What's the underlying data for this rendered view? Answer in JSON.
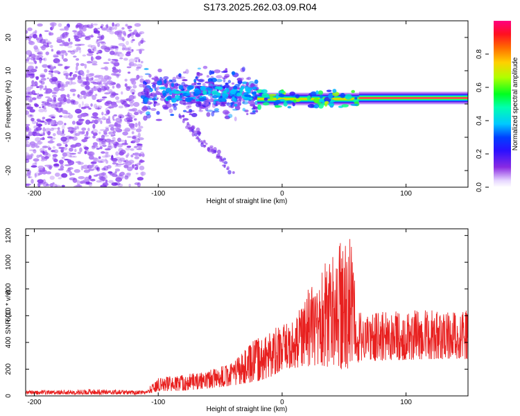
{
  "title": "S173.2025.262.03.09.R04",
  "colors": {
    "snr_line": "#e8201f",
    "spectrogram_base": "#7b2cf0",
    "axis": "#000000"
  },
  "chart_data": [
    {
      "type": "heatmap",
      "name": "spectrogram",
      "xlabel": "Height of straight line (km)",
      "ylabel": "Frequency (Hz)",
      "xlim": [
        -207,
        150
      ],
      "ylim": [
        -25,
        25
      ],
      "xticks": [
        -200,
        -100,
        0,
        100
      ],
      "yticks": [
        -20,
        -10,
        0,
        10,
        20
      ],
      "colorbar": {
        "label": "Normalized spectral amplitude",
        "range": [
          0,
          1
        ],
        "ticks": [
          0.0,
          0.2,
          0.4,
          0.6,
          0.8
        ],
        "tick_labels": [
          "0.0",
          "0.2",
          "0.4",
          "0.6",
          "0.8"
        ]
      },
      "features": [
        {
          "description_kind": "noise",
          "x_range": [
            -207,
            -112
          ],
          "freq_range": [
            -25,
            24
          ],
          "amplitude": 0.15
        },
        {
          "description_kind": "scattered",
          "x_range": [
            -112,
            -20
          ],
          "freq_center": 3,
          "freq_spread": 6,
          "amplitude": 0.3
        },
        {
          "description_kind": "descending_streak",
          "x_start": -82,
          "freq_start": -4,
          "x_end": -40,
          "freq_end": -20
        },
        {
          "description_kind": "tone",
          "x_range": [
            -20,
            62
          ],
          "freq": 1.5,
          "amplitude": 0.8
        },
        {
          "description_kind": "tone",
          "x_range": [
            62,
            150
          ],
          "freq": 1.8,
          "amplitude": 1.0
        }
      ]
    },
    {
      "type": "line",
      "name": "snr",
      "xlabel": "Height of straight line (km)",
      "ylabel": "SNR (10 * v/v)",
      "xlim": [
        -207,
        150
      ],
      "ylim": [
        0,
        1250
      ],
      "xticks": [
        -200,
        -100,
        0,
        100
      ],
      "yticks": [
        0,
        200,
        400,
        600,
        800,
        1000,
        1200
      ],
      "series": [
        {
          "name": "SNR",
          "envelope_x": [
            -207,
            -150,
            -110,
            -100,
            -80,
            -60,
            -40,
            -20,
            -10,
            0,
            10,
            20,
            30,
            40,
            50,
            55,
            60,
            65,
            80,
            100,
            120,
            150
          ],
          "envelope_base": [
            20,
            20,
            20,
            60,
            70,
            100,
            140,
            200,
            250,
            350,
            380,
            400,
            420,
            380,
            350,
            360,
            420,
            470,
            480,
            490,
            500,
            500
          ],
          "envelope_peak": [
            40,
            50,
            40,
            140,
            160,
            190,
            260,
            440,
            490,
            530,
            560,
            820,
            930,
            1100,
            1200,
            1230,
            700,
            610,
            630,
            640,
            640,
            640
          ]
        }
      ]
    }
  ]
}
